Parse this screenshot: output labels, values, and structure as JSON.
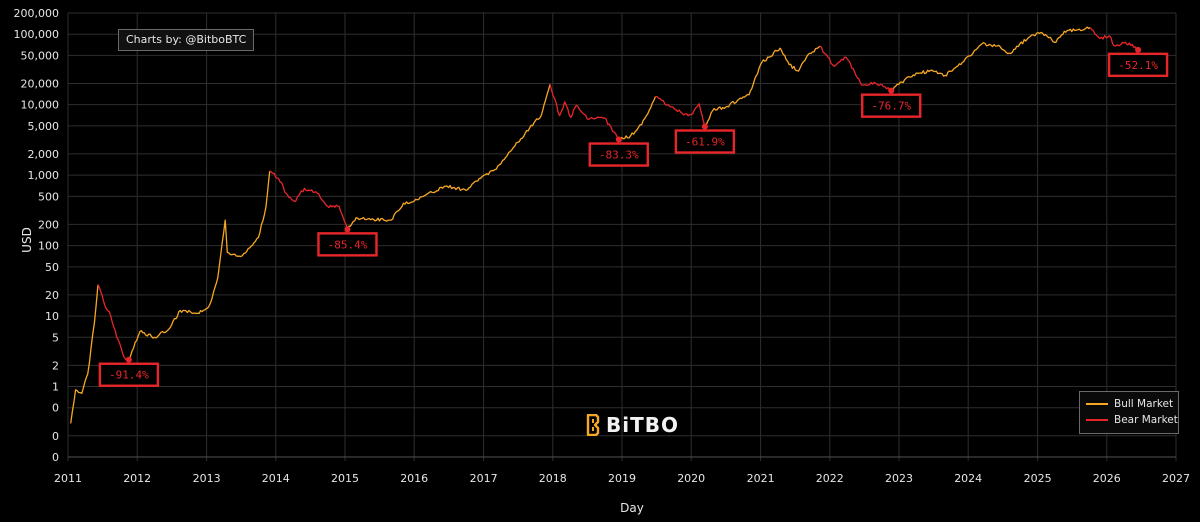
{
  "credit": "Charts by: @BitboBTC",
  "logo_text": "BiTBO",
  "colors": {
    "bull": "#f7a723",
    "bear": "#e8262a",
    "background": "#000000",
    "grid": "#2e2e2e"
  },
  "chart_data": {
    "type": "line",
    "title": "",
    "xlabel": "Day",
    "ylabel": "USD",
    "yscale": "log",
    "ylim": [
      0.1,
      200000
    ],
    "xlim": [
      "2011-01-01",
      "2027-01-01"
    ],
    "grid": true,
    "legend_position": "bottom-right",
    "x_ticks": [
      "2011",
      "2012",
      "2013",
      "2014",
      "2015",
      "2016",
      "2017",
      "2018",
      "2019",
      "2020",
      "2021",
      "2022",
      "2023",
      "2024",
      "2025",
      "2026",
      "2027"
    ],
    "y_ticks": [
      {
        "value": 0.1,
        "label": "0"
      },
      {
        "value": 0.2,
        "label": "0"
      },
      {
        "value": 0.5,
        "label": "0"
      },
      {
        "value": 1,
        "label": "1"
      },
      {
        "value": 2,
        "label": "2"
      },
      {
        "value": 5,
        "label": "5"
      },
      {
        "value": 10,
        "label": "10"
      },
      {
        "value": 20,
        "label": "20"
      },
      {
        "value": 50,
        "label": "50"
      },
      {
        "value": 100,
        "label": "100"
      },
      {
        "value": 200,
        "label": "200"
      },
      {
        "value": 500,
        "label": "500"
      },
      {
        "value": 1000,
        "label": "1,000"
      },
      {
        "value": 2000,
        "label": "2,000"
      },
      {
        "value": 5000,
        "label": "5,000"
      },
      {
        "value": 10000,
        "label": "10,000"
      },
      {
        "value": 20000,
        "label": "20,000"
      },
      {
        "value": 50000,
        "label": "50,000"
      },
      {
        "value": 100000,
        "label": "100,000"
      },
      {
        "value": 200000,
        "label": "200,000"
      }
    ],
    "series": [
      {
        "name": "Bull Market",
        "market": "bull",
        "points": [
          [
            "2011-01-15",
            0.3
          ],
          [
            "2011-02-10",
            0.9
          ],
          [
            "2011-03-15",
            0.8
          ],
          [
            "2011-04-15",
            1.5
          ],
          [
            "2011-05-20",
            8
          ],
          [
            "2011-06-08",
            28
          ]
        ]
      },
      {
        "name": "Bear Market",
        "market": "bear",
        "points": [
          [
            "2011-06-08",
            28
          ],
          [
            "2011-07-15",
            14
          ],
          [
            "2011-08-15",
            10
          ],
          [
            "2011-09-15",
            5
          ],
          [
            "2011-10-25",
            2.6
          ],
          [
            "2011-11-18",
            2.4
          ]
        ]
      },
      {
        "name": "Bull Market",
        "market": "bull",
        "points": [
          [
            "2011-11-18",
            2.4
          ],
          [
            "2012-01-15",
            6
          ],
          [
            "2012-04-01",
            5
          ],
          [
            "2012-06-15",
            6.5
          ],
          [
            "2012-08-15",
            12
          ],
          [
            "2012-11-15",
            11
          ],
          [
            "2013-01-15",
            14
          ],
          [
            "2013-03-01",
            35
          ],
          [
            "2013-04-09",
            230
          ],
          [
            "2013-04-20",
            80
          ],
          [
            "2013-07-01",
            70
          ],
          [
            "2013-10-01",
            130
          ],
          [
            "2013-11-10",
            350
          ],
          [
            "2013-11-30",
            1150
          ]
        ]
      },
      {
        "name": "Bear Market",
        "market": "bear",
        "points": [
          [
            "2013-11-30",
            1150
          ],
          [
            "2014-01-15",
            900
          ],
          [
            "2014-02-25",
            550
          ],
          [
            "2014-04-10",
            420
          ],
          [
            "2014-06-01",
            650
          ],
          [
            "2014-08-01",
            580
          ],
          [
            "2014-10-01",
            360
          ],
          [
            "2014-12-01",
            360
          ],
          [
            "2015-01-14",
            170
          ]
        ]
      },
      {
        "name": "Bull Market",
        "market": "bull",
        "points": [
          [
            "2015-01-14",
            170
          ],
          [
            "2015-03-01",
            250
          ],
          [
            "2015-06-01",
            235
          ],
          [
            "2015-09-01",
            230
          ],
          [
            "2015-11-05",
            400
          ],
          [
            "2016-01-01",
            430
          ],
          [
            "2016-06-15",
            700
          ],
          [
            "2016-10-01",
            610
          ],
          [
            "2017-01-01",
            990
          ],
          [
            "2017-03-01",
            1200
          ],
          [
            "2017-06-15",
            2600
          ],
          [
            "2017-09-01",
            4700
          ],
          [
            "2017-11-01",
            7000
          ],
          [
            "2017-12-17",
            19500
          ]
        ]
      },
      {
        "name": "Bear Market",
        "market": "bear",
        "points": [
          [
            "2017-12-17",
            19500
          ],
          [
            "2018-02-06",
            7000
          ],
          [
            "2018-03-05",
            11000
          ],
          [
            "2018-04-06",
            6600
          ],
          [
            "2018-05-05",
            9800
          ],
          [
            "2018-07-01",
            6300
          ],
          [
            "2018-10-01",
            6500
          ],
          [
            "2018-12-15",
            3200
          ]
        ]
      },
      {
        "name": "Bull Market",
        "market": "bull",
        "points": [
          [
            "2018-12-15",
            3200
          ],
          [
            "2019-02-15",
            3600
          ],
          [
            "2019-04-15",
            5200
          ],
          [
            "2019-06-26",
            13000
          ]
        ]
      },
      {
        "name": "Bear Market",
        "market": "bear",
        "points": [
          [
            "2019-06-26",
            13000
          ],
          [
            "2019-09-01",
            10000
          ],
          [
            "2019-11-15",
            7500
          ],
          [
            "2019-12-31",
            7200
          ],
          [
            "2020-02-12",
            10300
          ],
          [
            "2020-03-13",
            4900
          ]
        ]
      },
      {
        "name": "Bull Market",
        "market": "bull",
        "points": [
          [
            "2020-03-13",
            4900
          ],
          [
            "2020-05-01",
            8800
          ],
          [
            "2020-07-01",
            9200
          ],
          [
            "2020-09-01",
            11500
          ],
          [
            "2020-11-01",
            13800
          ],
          [
            "2021-01-08",
            40000
          ],
          [
            "2021-02-15",
            47000
          ],
          [
            "2021-04-14",
            64000
          ]
        ]
      },
      {
        "name": "Bull Market",
        "market": "bull",
        "points": [
          [
            "2021-04-14",
            64000
          ],
          [
            "2021-06-01",
            37000
          ],
          [
            "2021-07-20",
            30000
          ],
          [
            "2021-09-01",
            48000
          ],
          [
            "2021-11-10",
            68000
          ]
        ]
      },
      {
        "name": "Bear Market",
        "market": "bear",
        "points": [
          [
            "2021-11-10",
            68000
          ],
          [
            "2022-01-24",
            35000
          ],
          [
            "2022-03-28",
            47000
          ],
          [
            "2022-05-12",
            29000
          ],
          [
            "2022-06-18",
            19000
          ],
          [
            "2022-09-01",
            20000
          ],
          [
            "2022-11-21",
            15800
          ]
        ]
      },
      {
        "name": "Bull Market",
        "market": "bull",
        "points": [
          [
            "2022-11-21",
            15800
          ],
          [
            "2023-01-15",
            21000
          ],
          [
            "2023-04-01",
            28000
          ],
          [
            "2023-07-01",
            30000
          ],
          [
            "2023-09-01",
            26000
          ],
          [
            "2023-12-01",
            40000
          ],
          [
            "2024-03-14",
            73000
          ],
          [
            "2024-06-01",
            68000
          ],
          [
            "2024-08-05",
            54000
          ],
          [
            "2024-11-15",
            90000
          ],
          [
            "2025-01-20",
            106000
          ],
          [
            "2025-04-08",
            77000
          ],
          [
            "2025-05-22",
            110000
          ],
          [
            "2025-08-01",
            116000
          ],
          [
            "2025-10-06",
            124000
          ]
        ]
      },
      {
        "name": "Bear Market",
        "market": "bear",
        "points": [
          [
            "2025-10-06",
            124000
          ],
          [
            "2025-11-25",
            87000
          ],
          [
            "2026-01-15",
            95000
          ],
          [
            "2026-02-10",
            68000
          ],
          [
            "2026-04-01",
            75000
          ],
          [
            "2026-05-15",
            72000
          ],
          [
            "2026-06-15",
            60000
          ]
        ]
      }
    ],
    "drawdowns": [
      {
        "label": "-91.4%",
        "date": "2011-11-18",
        "value": 2.4
      },
      {
        "label": "-85.4%",
        "date": "2015-01-14",
        "value": 170
      },
      {
        "label": "-83.3%",
        "date": "2018-12-15",
        "value": 3200
      },
      {
        "label": "-61.9%",
        "date": "2020-03-13",
        "value": 4900
      },
      {
        "label": "-76.7%",
        "date": "2022-11-21",
        "value": 15800
      },
      {
        "label": "-52.1%",
        "date": "2026-06-15",
        "value": 60000
      }
    ],
    "legend": [
      {
        "label": "Bull Market",
        "color": "#f7a723"
      },
      {
        "label": "Bear Market",
        "color": "#e8262a"
      }
    ]
  }
}
